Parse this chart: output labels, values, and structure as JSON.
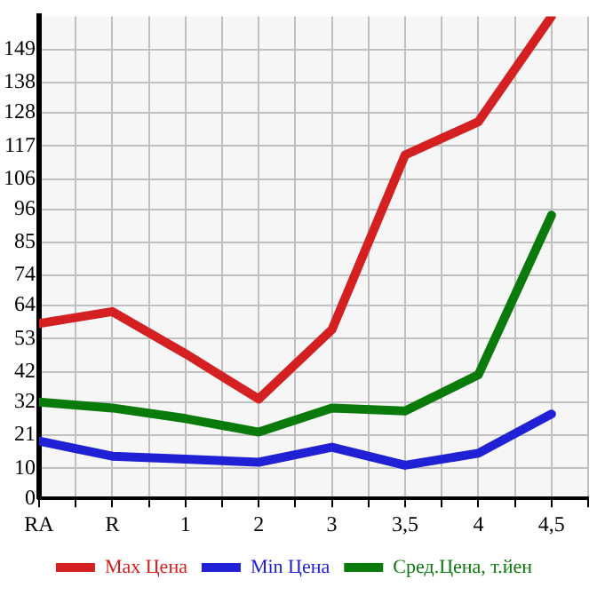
{
  "chart_data": {
    "type": "line",
    "categories": [
      "RA",
      "R",
      "1",
      "2",
      "3",
      "3,5",
      "4",
      "4,5"
    ],
    "series": [
      {
        "name": "Max Цена",
        "color": "#d42020",
        "values": [
          58,
          62,
          48,
          33,
          56,
          114,
          125,
          160
        ]
      },
      {
        "name": "Min Цена",
        "color": "#2020d4",
        "values": [
          19,
          14,
          13,
          12,
          17,
          11,
          15,
          28
        ]
      },
      {
        "name": "Сред.Цена, т.йен",
        "color": "#0a7a0a",
        "values": [
          32,
          30,
          26.5,
          22,
          30,
          29,
          41,
          94
        ]
      }
    ],
    "ylim": [
      0,
      160
    ],
    "yticks": [
      0,
      10,
      21,
      32,
      42,
      53,
      64,
      74,
      85,
      96,
      106,
      117,
      128,
      138,
      149
    ],
    "grid": true,
    "legend": "bottom",
    "marker": "none",
    "line_style": "solid"
  }
}
